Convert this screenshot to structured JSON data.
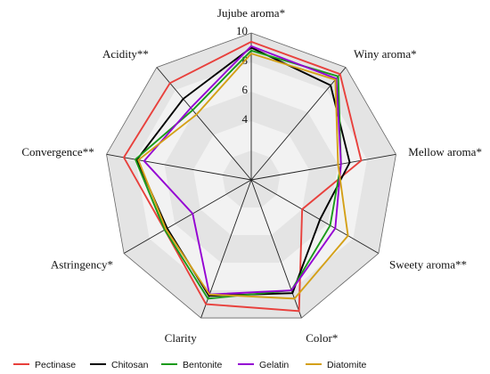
{
  "chart_data": {
    "type": "radar",
    "axes": [
      "Jujube aroma*",
      "Winy aroma*",
      "Mellow aroma*",
      "Sweety aroma**",
      "Color*",
      "Clarity",
      "Astringency*",
      "Convergence**",
      "Acidity**"
    ],
    "rlim": [
      0,
      10
    ],
    "ticks": [
      4,
      6,
      8,
      10
    ],
    "grid": true,
    "legend_position": "bottom",
    "series": [
      {
        "name": "Pectinase",
        "color": "#e8403c",
        "values": [
          9.4,
          9.4,
          7.6,
          4.0,
          9.5,
          9.0,
          6.8,
          8.8,
          8.6
        ]
      },
      {
        "name": "Chitosan",
        "color": "#000000",
        "values": [
          9.0,
          8.4,
          6.8,
          5.4,
          8.2,
          8.4,
          6.6,
          7.9,
          7.2
        ]
      },
      {
        "name": "Bentonite",
        "color": "#1a9a1a",
        "values": [
          8.8,
          9.2,
          6.2,
          6.2,
          8.0,
          8.6,
          6.8,
          8.0,
          6.2
        ]
      },
      {
        "name": "Gelatin",
        "color": "#9400d3",
        "values": [
          9.1,
          9.0,
          6.2,
          6.6,
          8.0,
          8.3,
          4.6,
          7.4,
          6.4
        ]
      },
      {
        "name": "Diatomite",
        "color": "#d4a017",
        "values": [
          8.6,
          8.9,
          6.0,
          7.6,
          8.6,
          8.3,
          6.7,
          7.8,
          5.8
        ]
      }
    ]
  }
}
